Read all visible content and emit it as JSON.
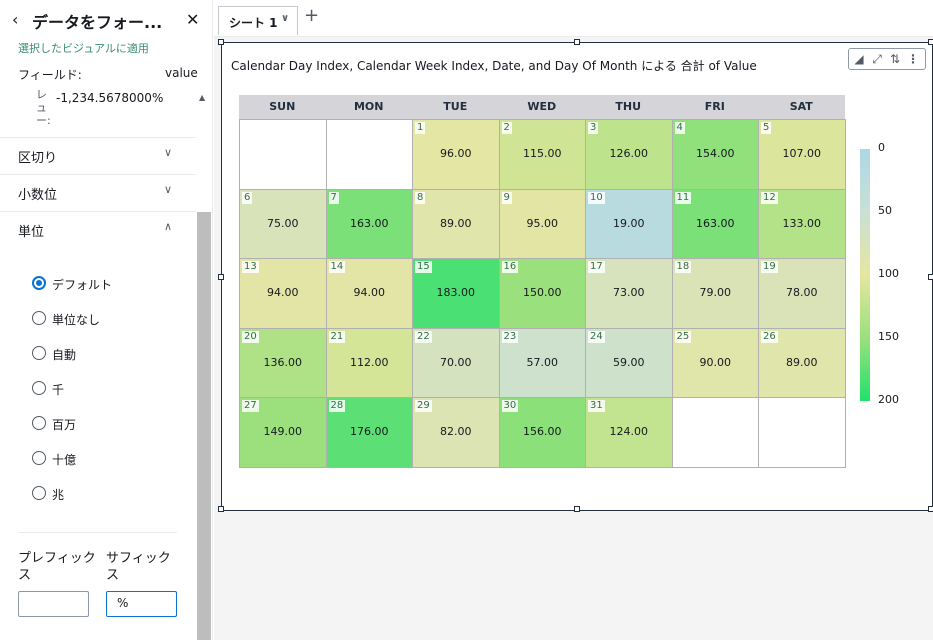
{
  "panel": {
    "back_icon": "chevron-left-icon",
    "title": "データをフォー...",
    "close_icon": "close-icon",
    "apply_note": "選択したビジュアルに適用",
    "field_label": "フィールド:",
    "field_value": "value",
    "preview_prefix": "レュー:",
    "preview_value": "-1,234.5678000%",
    "sections": {
      "separator": "区切り",
      "decimals": "小数位",
      "units": "単位"
    },
    "unit_options": [
      {
        "label": "デフォルト",
        "checked": true
      },
      {
        "label": "単位なし",
        "checked": false
      },
      {
        "label": "自動",
        "checked": false
      },
      {
        "label": "千",
        "checked": false
      },
      {
        "label": "百万",
        "checked": false
      },
      {
        "label": "十億",
        "checked": false
      },
      {
        "label": "兆",
        "checked": false
      }
    ],
    "prefix_label": "プレフィックス",
    "suffix_label": "サフィックス",
    "prefix_value": "",
    "suffix_value": "%"
  },
  "tabs": {
    "sheet_label": "シート 1",
    "add_icon": "plus-icon"
  },
  "visual": {
    "title": "Calendar Day Index, Calendar Week Index, Date, and Day Of Month による 合計 of Value",
    "toolbar_icons": [
      "chart-type-icon",
      "expand-icon",
      "sort-icon",
      "more-options-icon"
    ]
  },
  "chart_data": {
    "type": "heatmap",
    "title": "Calendar Day Index, Calendar Week Index, Date, and Day Of Month による 合計 of Value",
    "columns": [
      "SUN",
      "MON",
      "TUE",
      "WED",
      "THU",
      "FRI",
      "SAT"
    ],
    "weeks": [
      [
        null,
        null,
        {
          "day": "1",
          "value": 96.0,
          "label": "96.00"
        },
        {
          "day": "2",
          "value": 115.0,
          "label": "115.00"
        },
        {
          "day": "3",
          "value": 126.0,
          "label": "126.00"
        },
        {
          "day": "4",
          "value": 154.0,
          "label": "154.00"
        },
        {
          "day": "5",
          "value": 107.0,
          "label": "107.00"
        }
      ],
      [
        {
          "day": "6",
          "value": 75.0,
          "label": "75.00"
        },
        {
          "day": "7",
          "value": 163.0,
          "label": "163.00"
        },
        {
          "day": "8",
          "value": 89.0,
          "label": "89.00"
        },
        {
          "day": "9",
          "value": 95.0,
          "label": "95.00"
        },
        {
          "day": "10",
          "value": 19.0,
          "label": "19.00"
        },
        {
          "day": "11",
          "value": 163.0,
          "label": "163.00"
        },
        {
          "day": "12",
          "value": 133.0,
          "label": "133.00"
        }
      ],
      [
        {
          "day": "13",
          "value": 94.0,
          "label": "94.00"
        },
        {
          "day": "14",
          "value": 94.0,
          "label": "94.00"
        },
        {
          "day": "15",
          "value": 183.0,
          "label": "183.00"
        },
        {
          "day": "16",
          "value": 150.0,
          "label": "150.00"
        },
        {
          "day": "17",
          "value": 73.0,
          "label": "73.00"
        },
        {
          "day": "18",
          "value": 79.0,
          "label": "79.00"
        },
        {
          "day": "19",
          "value": 78.0,
          "label": "78.00"
        }
      ],
      [
        {
          "day": "20",
          "value": 136.0,
          "label": "136.00"
        },
        {
          "day": "21",
          "value": 112.0,
          "label": "112.00"
        },
        {
          "day": "22",
          "value": 70.0,
          "label": "70.00"
        },
        {
          "day": "23",
          "value": 57.0,
          "label": "57.00"
        },
        {
          "day": "24",
          "value": 59.0,
          "label": "59.00"
        },
        {
          "day": "25",
          "value": 90.0,
          "label": "90.00"
        },
        {
          "day": "26",
          "value": 89.0,
          "label": "89.00"
        }
      ],
      [
        {
          "day": "27",
          "value": 149.0,
          "label": "149.00"
        },
        {
          "day": "28",
          "value": 176.0,
          "label": "176.00"
        },
        {
          "day": "29",
          "value": 82.0,
          "label": "82.00"
        },
        {
          "day": "30",
          "value": 156.0,
          "label": "156.00"
        },
        {
          "day": "31",
          "value": 124.0,
          "label": "124.00"
        },
        null,
        null
      ]
    ],
    "color_scale": {
      "min": 0,
      "max": 200,
      "stops": [
        "#add8e6",
        "#c9e0d4",
        "#e6e6a0",
        "#9ae07c",
        "#22e06e"
      ],
      "ticks": [
        "0",
        "50",
        "100",
        "150",
        "200"
      ]
    },
    "legend": "right"
  }
}
